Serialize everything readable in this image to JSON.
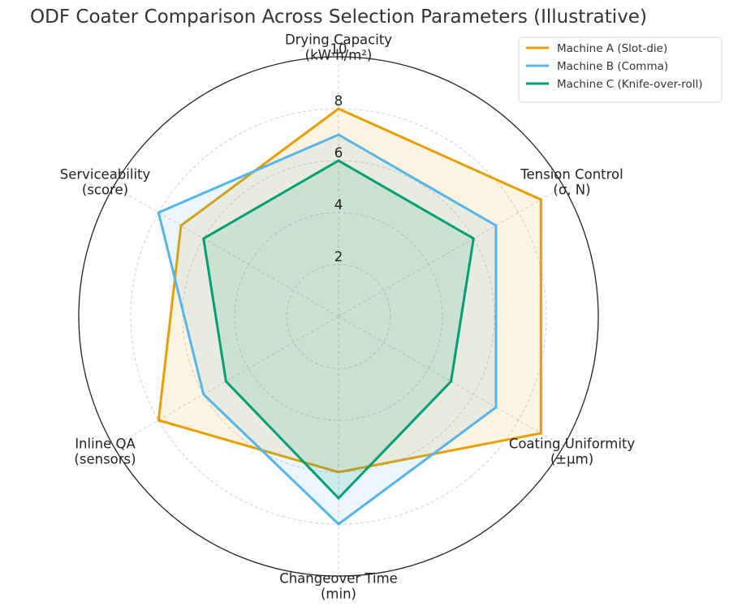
{
  "chart_data": {
    "type": "radar",
    "title": "ODF Coater Comparison Across Selection Parameters (Illustrative)",
    "axes": [
      {
        "label_lines": [
          "Drying Capacity",
          "(kW·h/m²)"
        ]
      },
      {
        "label_lines": [
          "Tension Control",
          "(σ, N)"
        ]
      },
      {
        "label_lines": [
          "Coating Uniformity",
          "(±μm)"
        ]
      },
      {
        "label_lines": [
          "Changeover Time",
          "(min)"
        ]
      },
      {
        "label_lines": [
          "Inline QA",
          "(sensors)"
        ]
      },
      {
        "label_lines": [
          "Serviceability",
          "(score)"
        ]
      }
    ],
    "rlim": [
      0,
      10
    ],
    "rticks": [
      2,
      4,
      6,
      8,
      10
    ],
    "grid": true,
    "legend_position": "top-right",
    "series": [
      {
        "name": "Machine A (Slot-die)",
        "color": "#E69F00",
        "values": [
          8,
          9,
          9,
          6,
          8,
          7
        ]
      },
      {
        "name": "Machine B (Comma)",
        "color": "#56B4E9",
        "values": [
          7,
          7,
          7,
          8,
          6,
          8
        ]
      },
      {
        "name": "Machine C (Knife-over-roll)",
        "color": "#009E73",
        "values": [
          6,
          6,
          5,
          7,
          5,
          6
        ]
      }
    ]
  }
}
